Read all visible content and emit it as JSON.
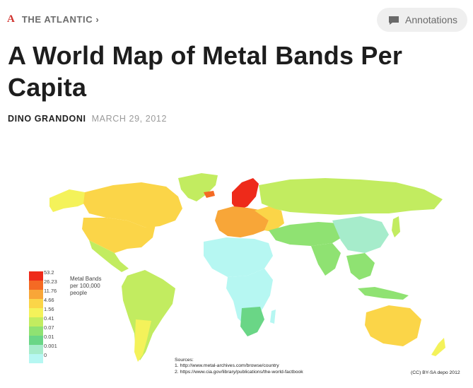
{
  "header": {
    "publication": "THE ATLANTIC ›",
    "logo": "A",
    "annotations_label": "Annotations",
    "annotations_icon": "speech-bubble-icon"
  },
  "article": {
    "title": "A World Map of Metal Bands Per Capita",
    "author": "DINO GRANDONI",
    "date": "MARCH 29, 2012"
  },
  "map": {
    "legend": {
      "title": "Metal Bands per 100,000 people",
      "ticks": [
        "53.2",
        "26.23",
        "11.76",
        "4.66",
        "1.56",
        "0.41",
        "0.07",
        "0.01",
        "0.001",
        "0"
      ],
      "colors": [
        "#ee2a1a",
        "#f46a24",
        "#f8a638",
        "#fbd548",
        "#f4f25a",
        "#c2ec60",
        "#8fe272",
        "#6ad686",
        "#a6eccb",
        "#b6f7f2"
      ]
    },
    "sources": {
      "heading": "Sources:",
      "line1": "1. http://www.metal-archives.com/browse/country",
      "line2": "2. https://www.cia.gov/library/publications/the-world-factbook"
    },
    "credit": "(CC) BY-SA depo 2012"
  }
}
